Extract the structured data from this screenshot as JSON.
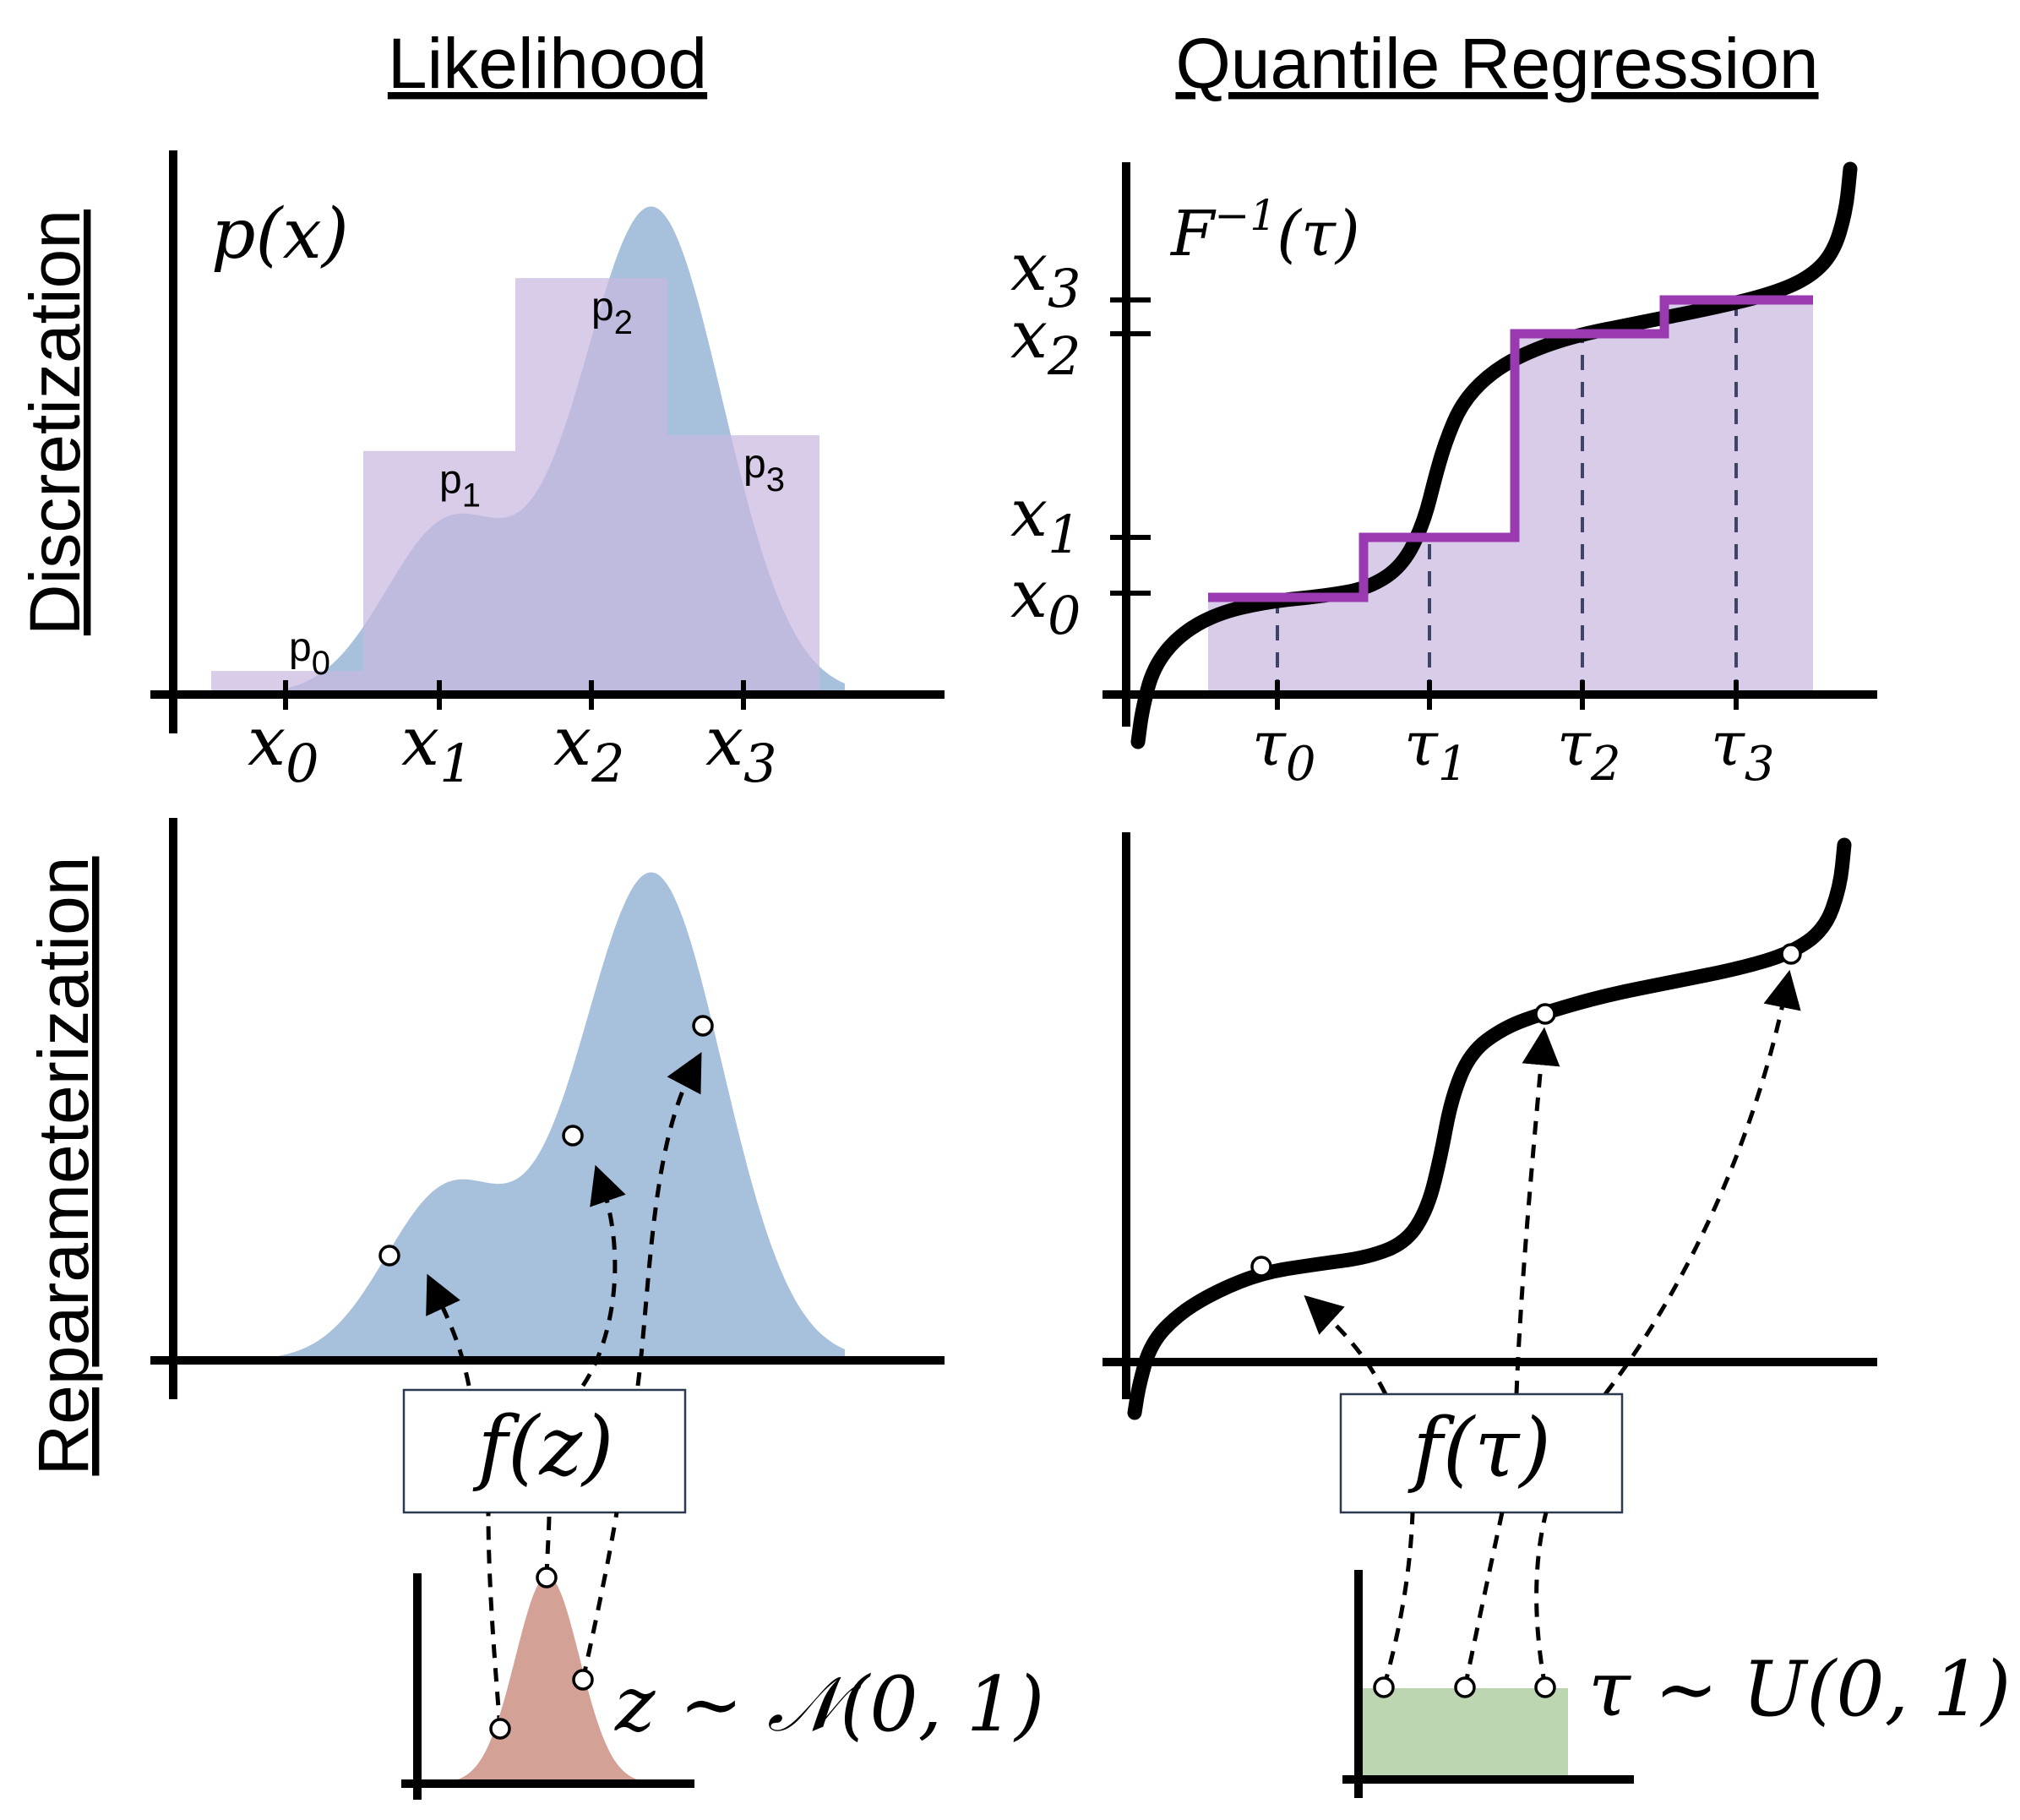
{
  "headers": {
    "left": "Likelihood",
    "right": "Quantile Regression"
  },
  "row_labels": {
    "top": "Discretization",
    "bottom": "Reparameterization"
  },
  "panel_tl": {
    "func_label": "p(x)",
    "x_ticks": [
      "x0",
      "x1",
      "x2",
      "x3"
    ],
    "bins": [
      {
        "label": "p0",
        "sub": "0",
        "prob": 0.03
      },
      {
        "label": "p1",
        "sub": "1",
        "prob": 0.31
      },
      {
        "label": "p2",
        "sub": "2",
        "prob": 0.53
      },
      {
        "label": "p3",
        "sub": "3",
        "prob": 0.33
      }
    ]
  },
  "panel_tr": {
    "func_label": "F",
    "func_sup": "−1",
    "func_arg": "(τ)",
    "y_ticks": [
      {
        "base": "x",
        "sub": "3"
      },
      {
        "base": "x",
        "sub": "2"
      },
      {
        "base": "x",
        "sub": "1"
      },
      {
        "base": "x",
        "sub": "0"
      }
    ],
    "tau_ticks": [
      {
        "base": "τ",
        "sub": "0"
      },
      {
        "base": "τ",
        "sub": "1"
      },
      {
        "base": "τ",
        "sub": "2"
      },
      {
        "base": "τ",
        "sub": "3"
      }
    ]
  },
  "panel_bl": {
    "transform_label": "f(z)",
    "dist_label": "z ∼ 𝒩(0, 1)"
  },
  "panel_br": {
    "transform_label": "f(τ)",
    "dist_label": "τ ∼ U(0, 1)"
  },
  "colors": {
    "density_fill": "#a7c0dc",
    "bin_fill": "#c9b8e0",
    "step_line": "#9a3ab0",
    "normal_fill": "#d4a196",
    "uniform_fill": "#bcd6b2"
  }
}
